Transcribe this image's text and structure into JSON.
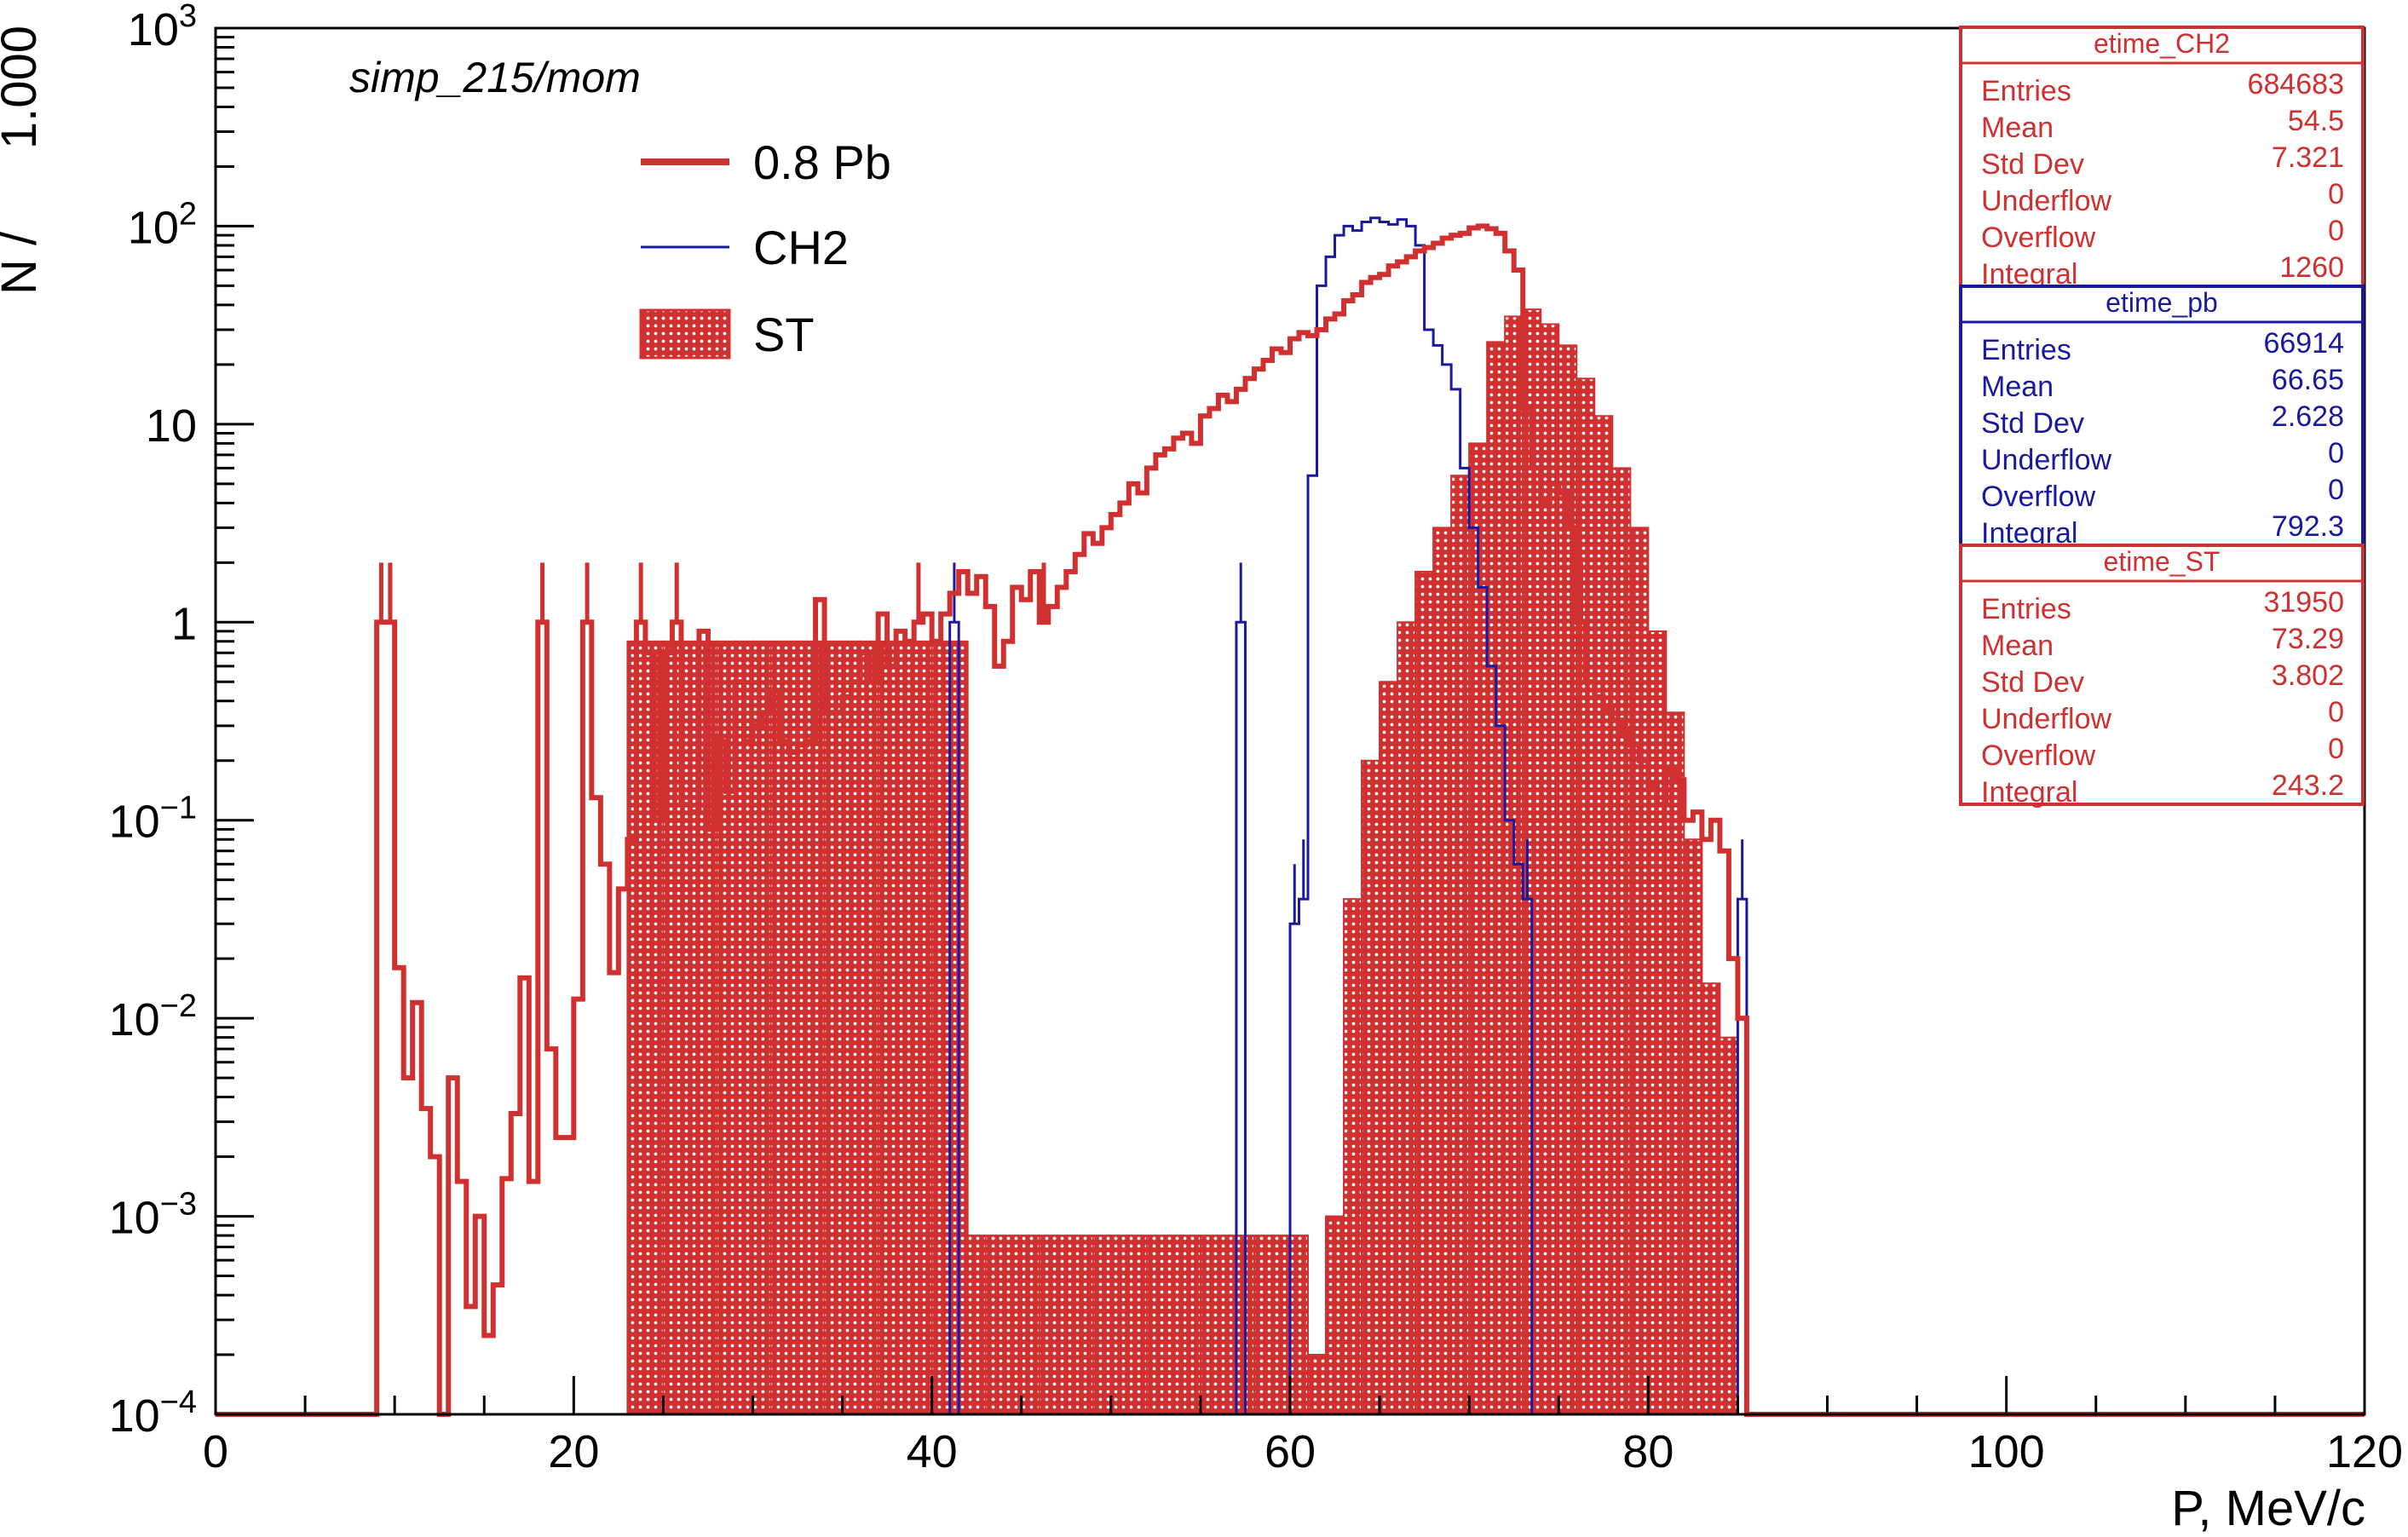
{
  "chart_data": {
    "type": "histogram",
    "title": "simp_215/mom",
    "xlabel": "P, MeV/c",
    "ylabel": "N /      1.000",
    "xlim": [
      0,
      120
    ],
    "ylim": [
      0.0001,
      1000
    ],
    "y_scale": "log",
    "grid": false,
    "legend_position": "top-left",
    "x_ticks": [
      0,
      20,
      40,
      60,
      80,
      100,
      120
    ],
    "x_tick_labels": [
      "0",
      "20",
      "40",
      "60",
      "80",
      "100",
      "120"
    ],
    "y_ticks": [
      0.0001,
      0.001,
      0.01,
      0.1,
      1,
      10,
      100,
      1000
    ],
    "y_tick_labels": [
      {
        "base": "10",
        "exp": "−4"
      },
      {
        "base": "10",
        "exp": "−3"
      },
      {
        "base": "10",
        "exp": "−2"
      },
      {
        "base": "10",
        "exp": "−1"
      },
      {
        "base": "1",
        "exp": ""
      },
      {
        "base": "10",
        "exp": ""
      },
      {
        "base": "10",
        "exp": "2"
      },
      {
        "base": "10",
        "exp": "3"
      }
    ],
    "series": [
      {
        "name": "0.8 Pb",
        "color": "#d03030",
        "style": "thick-line",
        "bin_width": 0.5,
        "x_start": 0,
        "floor": 0.0001,
        "points": [
          [
            9,
            1
          ],
          [
            10,
            0.018
          ],
          [
            10.5,
            0.005
          ],
          [
            11,
            0.012
          ],
          [
            11.5,
            0.0035
          ],
          [
            12,
            0.002
          ],
          [
            12.5,
            0.0001
          ],
          [
            13,
            0.005
          ],
          [
            13.5,
            0.0015
          ],
          [
            14,
            0.00035
          ],
          [
            14.5,
            0.001
          ],
          [
            15,
            0.00025
          ],
          [
            15.5,
            0.00045
          ],
          [
            16,
            0.00155
          ],
          [
            16.5,
            0.0033
          ],
          [
            17,
            0.016
          ],
          [
            17.5,
            0.0015
          ],
          [
            18,
            1
          ],
          [
            18.5,
            0.007
          ],
          [
            19,
            0.0025
          ],
          [
            19.5,
            0.0025
          ],
          [
            20,
            0.0125
          ],
          [
            20.5,
            1
          ],
          [
            21,
            0.13
          ],
          [
            21.5,
            0.06
          ],
          [
            22,
            0.017
          ],
          [
            22.5,
            0.045
          ],
          [
            23,
            0.08
          ],
          [
            23.5,
            1
          ],
          [
            24,
            0.7
          ],
          [
            24.5,
            0.1
          ],
          [
            25,
            0.7
          ],
          [
            25.5,
            1
          ],
          [
            26,
            0.12
          ],
          [
            26.5,
            0.11
          ],
          [
            27,
            0.9
          ],
          [
            27.5,
            0.09
          ],
          [
            28,
            0.25
          ],
          [
            28.5,
            0.14
          ],
          [
            29,
            0.5
          ],
          [
            29.5,
            0.25
          ],
          [
            30,
            0.3
          ],
          [
            30.5,
            0.35
          ],
          [
            31,
            0.45
          ],
          [
            31.5,
            0.25
          ],
          [
            32,
            0.22
          ],
          [
            32.5,
            0.24
          ],
          [
            33,
            0.25
          ],
          [
            33.5,
            1.3
          ],
          [
            34,
            0.35
          ],
          [
            34.5,
            0.35
          ],
          [
            35,
            0.42
          ],
          [
            35.5,
            0.5
          ],
          [
            36,
            0.7
          ],
          [
            36.5,
            0.5
          ],
          [
            37,
            1.1
          ],
          [
            37.5,
            0.6
          ],
          [
            38,
            0.9
          ],
          [
            38.5,
            0.8
          ],
          [
            39,
            1
          ],
          [
            39.5,
            1.1
          ],
          [
            40,
            0.8
          ],
          [
            40.5,
            1.1
          ],
          [
            41,
            1.4
          ],
          [
            41.5,
            1.8
          ],
          [
            42,
            1.4
          ],
          [
            42.5,
            1.7
          ],
          [
            43,
            1.2
          ],
          [
            43.5,
            0.6
          ],
          [
            44,
            0.8
          ],
          [
            44.5,
            1.5
          ],
          [
            45,
            1.3
          ],
          [
            45.5,
            1.8
          ],
          [
            46,
            1.0
          ],
          [
            46.5,
            1.2
          ],
          [
            47,
            1.5
          ],
          [
            47.5,
            1.8
          ],
          [
            48,
            2.2
          ],
          [
            48.5,
            2.8
          ],
          [
            49,
            2.5
          ],
          [
            49.5,
            3.0
          ],
          [
            50,
            3.5
          ],
          [
            50.5,
            4.0
          ],
          [
            51,
            5.0
          ],
          [
            51.5,
            4.5
          ],
          [
            52,
            6.0
          ],
          [
            52.5,
            7.0
          ],
          [
            53,
            7.5
          ],
          [
            53.5,
            8.5
          ],
          [
            54,
            9.0
          ],
          [
            54.5,
            8.0
          ],
          [
            55,
            11.0
          ],
          [
            55.5,
            12.0
          ],
          [
            56,
            14.0
          ],
          [
            56.5,
            13.0
          ],
          [
            57,
            15.0
          ],
          [
            57.5,
            17.0
          ],
          [
            58,
            19.0
          ],
          [
            58.5,
            21.0
          ],
          [
            59,
            24.0
          ],
          [
            59.5,
            23.0
          ],
          [
            60,
            27.0
          ],
          [
            60.5,
            29.0
          ],
          [
            61,
            28.0
          ],
          [
            61.5,
            30.0
          ],
          [
            62,
            34.0
          ],
          [
            62.5,
            36.0
          ],
          [
            63,
            42.0
          ],
          [
            63.5,
            45.0
          ],
          [
            64,
            52.0
          ],
          [
            64.5,
            55.0
          ],
          [
            65,
            57.0
          ],
          [
            65.5,
            63.0
          ],
          [
            66,
            66.0
          ],
          [
            66.5,
            70.0
          ],
          [
            67,
            75.0
          ],
          [
            67.5,
            78.0
          ],
          [
            68,
            82.0
          ],
          [
            68.5,
            87.0
          ],
          [
            69,
            90.0
          ],
          [
            69.5,
            92.0
          ],
          [
            70,
            98.0
          ],
          [
            70.5,
            100.0
          ],
          [
            71,
            97.0
          ],
          [
            71.5,
            92.0
          ],
          [
            72,
            75.0
          ],
          [
            72.5,
            60.0
          ],
          [
            73,
            12.0
          ],
          [
            73.5,
            6.0
          ],
          [
            74,
            4.0
          ],
          [
            74.5,
            5.0
          ],
          [
            75,
            4.5
          ],
          [
            75.5,
            3.0
          ],
          [
            76,
            1.0
          ],
          [
            76.5,
            0.5
          ],
          [
            77,
            0.42
          ],
          [
            77.5,
            0.36
          ],
          [
            78,
            0.32
          ],
          [
            78.5,
            0.28
          ],
          [
            79,
            0.24
          ],
          [
            79.5,
            0.2
          ],
          [
            80,
            0.15
          ],
          [
            80.5,
            0.12
          ],
          [
            81,
            0.18
          ],
          [
            81.5,
            0.16
          ],
          [
            82,
            0.1
          ],
          [
            82.5,
            0.11
          ],
          [
            83,
            0.08
          ],
          [
            83.5,
            0.1
          ],
          [
            84,
            0.07
          ],
          [
            84.5,
            0.02
          ],
          [
            85,
            0.01
          ],
          [
            85.5,
            0.0001
          ]
        ]
      },
      {
        "name": "CH2",
        "color": "#1a1aa0",
        "style": "thin-line",
        "bin_width": 0.5,
        "x_start": 0,
        "floor": 0.0001,
        "points": [
          [
            41,
            1
          ],
          [
            41.5,
            0.0001
          ],
          [
            57,
            1
          ],
          [
            57.5,
            0.0001
          ],
          [
            60,
            0.03
          ],
          [
            60.5,
            0.04
          ],
          [
            61,
            5.5
          ],
          [
            61.5,
            50
          ],
          [
            62,
            70
          ],
          [
            62.5,
            90
          ],
          [
            63,
            100
          ],
          [
            63.5,
            95
          ],
          [
            64,
            105
          ],
          [
            64.5,
            110
          ],
          [
            65,
            105
          ],
          [
            65.5,
            102
          ],
          [
            66,
            108
          ],
          [
            66.5,
            100
          ],
          [
            67,
            80
          ],
          [
            67.5,
            30
          ],
          [
            68,
            25
          ],
          [
            68.5,
            20
          ],
          [
            69,
            15
          ],
          [
            69.5,
            6
          ],
          [
            70,
            3
          ],
          [
            70.5,
            1.5
          ],
          [
            71,
            0.6
          ],
          [
            71.5,
            0.3
          ],
          [
            72,
            0.1
          ],
          [
            72.5,
            0.06
          ],
          [
            73,
            0.04
          ],
          [
            73.5,
            0.0001
          ],
          [
            85,
            0.04
          ],
          [
            85.5,
            0.0001
          ]
        ]
      },
      {
        "name": "ST",
        "color": "#d03030",
        "style": "hatched-fill",
        "bin_width": 1,
        "x_start": 0,
        "floor": 0.0001,
        "points": [
          [
            23,
            0.8
          ],
          [
            42,
            0.0008
          ],
          [
            61,
            0.0002
          ],
          [
            62,
            0.001
          ],
          [
            63,
            0.04
          ],
          [
            64,
            0.2
          ],
          [
            65,
            0.5
          ],
          [
            66,
            1.0
          ],
          [
            67,
            1.8
          ],
          [
            68,
            3.0
          ],
          [
            69,
            5.5
          ],
          [
            70,
            8.0
          ],
          [
            71,
            26.0
          ],
          [
            72,
            35.0
          ],
          [
            73,
            38.0
          ],
          [
            74,
            32.0
          ],
          [
            75,
            25.0
          ],
          [
            76,
            17.0
          ],
          [
            77,
            11.0
          ],
          [
            78,
            6.0
          ],
          [
            79,
            3.0
          ],
          [
            80,
            0.9
          ],
          [
            81,
            0.35
          ],
          [
            82,
            0.08
          ],
          [
            83,
            0.015
          ],
          [
            84,
            0.008
          ]
        ]
      }
    ],
    "stats_boxes": [
      {
        "title": "etime_CH2",
        "color": "#d03030",
        "rows": [
          [
            "Entries",
            "684683"
          ],
          [
            "Mean",
            "54.5"
          ],
          [
            "Std Dev",
            "7.321"
          ],
          [
            "Underflow",
            "0"
          ],
          [
            "Overflow",
            "0"
          ],
          [
            "Integral",
            "1260"
          ]
        ]
      },
      {
        "title": "etime_pb",
        "color": "#1a1aa0",
        "rows": [
          [
            "Entries",
            "66914"
          ],
          [
            "Mean",
            "66.65"
          ],
          [
            "Std Dev",
            "2.628"
          ],
          [
            "Underflow",
            "0"
          ],
          [
            "Overflow",
            "0"
          ],
          [
            "Integral",
            "792.3"
          ]
        ]
      },
      {
        "title": "etime_ST",
        "color": "#d03030",
        "rows": [
          [
            "Entries",
            "31950"
          ],
          [
            "Mean",
            "73.29"
          ],
          [
            "Std Dev",
            "3.802"
          ],
          [
            "Underflow",
            "0"
          ],
          [
            "Overflow",
            "0"
          ],
          [
            "Integral",
            "243.2"
          ]
        ]
      }
    ]
  }
}
